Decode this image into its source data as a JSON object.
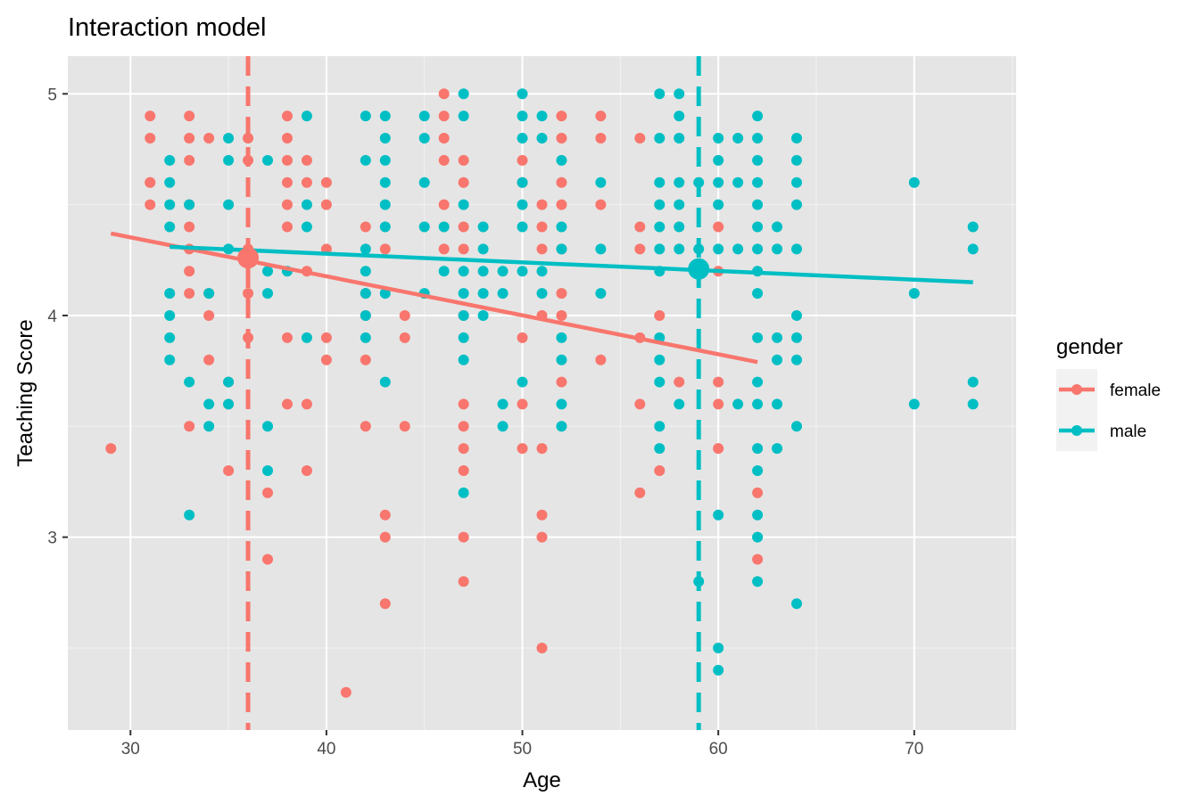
{
  "chart_data": {
    "type": "scatter",
    "title": "Interaction model",
    "xlabel": "Age",
    "ylabel": "Teaching Score",
    "xlim": [
      26.8,
      75.2
    ],
    "ylim": [
      2.13,
      5.17
    ],
    "x_ticks": [
      30,
      40,
      50,
      60,
      70
    ],
    "x_tick_labels": [
      "30",
      "40",
      "50",
      "60",
      "70"
    ],
    "y_ticks": [
      3,
      4,
      5
    ],
    "y_tick_labels": [
      "3",
      "4",
      "5"
    ],
    "grid": true,
    "legend": {
      "title": "gender",
      "position": "right",
      "entries": [
        {
          "label": "female",
          "color": "#F8766D"
        },
        {
          "label": "male",
          "color": "#00BFC4"
        }
      ]
    },
    "series": [
      {
        "name": "female",
        "color": "#F8766D",
        "points": [
          [
            29,
            3.4
          ],
          [
            31,
            4.9
          ],
          [
            31,
            4.8
          ],
          [
            31,
            4.6
          ],
          [
            31,
            4.6
          ],
          [
            31,
            4.5
          ],
          [
            33,
            4.9
          ],
          [
            33,
            4.8
          ],
          [
            33,
            4.7
          ],
          [
            33,
            4.5
          ],
          [
            33,
            4.4
          ],
          [
            33,
            4.3
          ],
          [
            33,
            4.2
          ],
          [
            33,
            4.1
          ],
          [
            33,
            3.5
          ],
          [
            34,
            4.8
          ],
          [
            34,
            4.1
          ],
          [
            34,
            4.0
          ],
          [
            34,
            3.8
          ],
          [
            35,
            3.7
          ],
          [
            35,
            3.6
          ],
          [
            35,
            3.3
          ],
          [
            36,
            4.8
          ],
          [
            36,
            4.7
          ],
          [
            36,
            4.3
          ],
          [
            36,
            4.1
          ],
          [
            36,
            3.9
          ],
          [
            37,
            3.2
          ],
          [
            37,
            2.9
          ],
          [
            38,
            4.9
          ],
          [
            38,
            4.8
          ],
          [
            38,
            4.7
          ],
          [
            38,
            4.6
          ],
          [
            38,
            4.5
          ],
          [
            38,
            4.4
          ],
          [
            38,
            3.9
          ],
          [
            38,
            3.6
          ],
          [
            39,
            4.7
          ],
          [
            39,
            4.6
          ],
          [
            39,
            4.2
          ],
          [
            39,
            3.6
          ],
          [
            39,
            3.3
          ],
          [
            40,
            4.6
          ],
          [
            40,
            4.5
          ],
          [
            40,
            4.3
          ],
          [
            40,
            3.9
          ],
          [
            40,
            3.8
          ],
          [
            41,
            2.3
          ],
          [
            42,
            4.4
          ],
          [
            42,
            4.1
          ],
          [
            42,
            4.0
          ],
          [
            42,
            3.8
          ],
          [
            42,
            3.5
          ],
          [
            43,
            4.3
          ],
          [
            43,
            3.1
          ],
          [
            43,
            3.0
          ],
          [
            43,
            2.7
          ],
          [
            44,
            4.0
          ],
          [
            44,
            3.9
          ],
          [
            44,
            3.5
          ],
          [
            46,
            5.0
          ],
          [
            46,
            4.9
          ],
          [
            46,
            4.8
          ],
          [
            46,
            4.7
          ],
          [
            46,
            4.5
          ],
          [
            46,
            4.3
          ],
          [
            47,
            4.7
          ],
          [
            47,
            4.6
          ],
          [
            47,
            4.4
          ],
          [
            47,
            4.3
          ],
          [
            47,
            4.0
          ],
          [
            47,
            3.6
          ],
          [
            47,
            3.5
          ],
          [
            47,
            3.4
          ],
          [
            47,
            3.3
          ],
          [
            47,
            3.0
          ],
          [
            47,
            2.8
          ],
          [
            50,
            4.7
          ],
          [
            50,
            4.6
          ],
          [
            50,
            3.9
          ],
          [
            50,
            3.6
          ],
          [
            50,
            3.4
          ],
          [
            51,
            4.5
          ],
          [
            51,
            4.4
          ],
          [
            51,
            4.3
          ],
          [
            51,
            4.0
          ],
          [
            51,
            3.4
          ],
          [
            51,
            3.1
          ],
          [
            51,
            3.0
          ],
          [
            51,
            2.5
          ],
          [
            52,
            4.9
          ],
          [
            52,
            4.8
          ],
          [
            52,
            4.6
          ],
          [
            52,
            4.5
          ],
          [
            52,
            4.3
          ],
          [
            52,
            4.1
          ],
          [
            52,
            4.0
          ],
          [
            52,
            3.7
          ],
          [
            54,
            4.9
          ],
          [
            54,
            4.8
          ],
          [
            54,
            4.5
          ],
          [
            54,
            3.8
          ],
          [
            56,
            4.8
          ],
          [
            56,
            4.4
          ],
          [
            56,
            4.3
          ],
          [
            56,
            3.9
          ],
          [
            56,
            3.6
          ],
          [
            56,
            3.2
          ],
          [
            57,
            4.0
          ],
          [
            57,
            3.3
          ],
          [
            58,
            3.7
          ],
          [
            60,
            4.4
          ],
          [
            60,
            4.2
          ],
          [
            60,
            3.7
          ],
          [
            60,
            3.6
          ],
          [
            60,
            3.4
          ],
          [
            62,
            3.2
          ],
          [
            62,
            2.9
          ]
        ],
        "fit_line": {
          "x": [
            29,
            62
          ],
          "y": [
            4.37,
            3.79
          ]
        },
        "mean_point": {
          "x": 36,
          "y": 4.26
        },
        "mean_age": 36
      },
      {
        "name": "male",
        "color": "#00BFC4",
        "points": [
          [
            32,
            4.7
          ],
          [
            32,
            4.6
          ],
          [
            32,
            4.5
          ],
          [
            32,
            4.4
          ],
          [
            32,
            4.1
          ],
          [
            32,
            4.0
          ],
          [
            32,
            3.9
          ],
          [
            32,
            3.8
          ],
          [
            33,
            4.5
          ],
          [
            33,
            3.7
          ],
          [
            33,
            3.1
          ],
          [
            34,
            4.1
          ],
          [
            34,
            3.6
          ],
          [
            34,
            3.5
          ],
          [
            35,
            4.8
          ],
          [
            35,
            4.7
          ],
          [
            35,
            4.5
          ],
          [
            35,
            4.3
          ],
          [
            35,
            3.7
          ],
          [
            35,
            3.6
          ],
          [
            37,
            4.7
          ],
          [
            37,
            4.2
          ],
          [
            37,
            4.1
          ],
          [
            37,
            3.5
          ],
          [
            37,
            3.3
          ],
          [
            38,
            4.2
          ],
          [
            39,
            4.9
          ],
          [
            39,
            4.5
          ],
          [
            39,
            4.4
          ],
          [
            39,
            3.9
          ],
          [
            42,
            4.9
          ],
          [
            42,
            4.7
          ],
          [
            42,
            4.3
          ],
          [
            42,
            4.2
          ],
          [
            42,
            4.1
          ],
          [
            42,
            4.0
          ],
          [
            42,
            3.9
          ],
          [
            43,
            4.9
          ],
          [
            43,
            4.8
          ],
          [
            43,
            4.7
          ],
          [
            43,
            4.6
          ],
          [
            43,
            4.5
          ],
          [
            43,
            4.4
          ],
          [
            43,
            4.1
          ],
          [
            43,
            3.7
          ],
          [
            45,
            4.9
          ],
          [
            45,
            4.8
          ],
          [
            45,
            4.6
          ],
          [
            45,
            4.4
          ],
          [
            45,
            4.1
          ],
          [
            46,
            4.4
          ],
          [
            46,
            4.2
          ],
          [
            47,
            5.0
          ],
          [
            47,
            4.9
          ],
          [
            47,
            4.5
          ],
          [
            47,
            4.2
          ],
          [
            47,
            4.1
          ],
          [
            47,
            4.0
          ],
          [
            47,
            3.9
          ],
          [
            47,
            3.8
          ],
          [
            47,
            3.2
          ],
          [
            48,
            4.4
          ],
          [
            48,
            4.3
          ],
          [
            48,
            4.2
          ],
          [
            48,
            4.1
          ],
          [
            48,
            4.0
          ],
          [
            49,
            4.2
          ],
          [
            49,
            4.1
          ],
          [
            49,
            3.6
          ],
          [
            49,
            3.5
          ],
          [
            50,
            5.0
          ],
          [
            50,
            4.9
          ],
          [
            50,
            4.8
          ],
          [
            50,
            4.6
          ],
          [
            50,
            4.5
          ],
          [
            50,
            4.4
          ],
          [
            50,
            4.2
          ],
          [
            50,
            3.7
          ],
          [
            51,
            4.9
          ],
          [
            51,
            4.8
          ],
          [
            51,
            4.2
          ],
          [
            51,
            4.1
          ],
          [
            52,
            4.7
          ],
          [
            52,
            4.4
          ],
          [
            52,
            4.3
          ],
          [
            52,
            3.9
          ],
          [
            52,
            3.8
          ],
          [
            52,
            3.6
          ],
          [
            52,
            3.5
          ],
          [
            54,
            4.6
          ],
          [
            54,
            4.3
          ],
          [
            54,
            4.1
          ],
          [
            57,
            5.0
          ],
          [
            57,
            4.8
          ],
          [
            57,
            4.6
          ],
          [
            57,
            4.5
          ],
          [
            57,
            4.4
          ],
          [
            57,
            4.3
          ],
          [
            57,
            4.2
          ],
          [
            57,
            3.9
          ],
          [
            57,
            3.8
          ],
          [
            57,
            3.7
          ],
          [
            57,
            3.5
          ],
          [
            57,
            3.4
          ],
          [
            58,
            5.0
          ],
          [
            58,
            4.9
          ],
          [
            58,
            4.8
          ],
          [
            58,
            4.6
          ],
          [
            58,
            4.5
          ],
          [
            58,
            4.4
          ],
          [
            58,
            4.3
          ],
          [
            58,
            3.6
          ],
          [
            59,
            4.6
          ],
          [
            59,
            4.3
          ],
          [
            59,
            2.8
          ],
          [
            60,
            4.8
          ],
          [
            60,
            4.7
          ],
          [
            60,
            4.6
          ],
          [
            60,
            4.5
          ],
          [
            60,
            4.3
          ],
          [
            60,
            3.1
          ],
          [
            60,
            2.5
          ],
          [
            60,
            2.4
          ],
          [
            61,
            4.8
          ],
          [
            61,
            4.6
          ],
          [
            61,
            4.3
          ],
          [
            61,
            3.6
          ],
          [
            62,
            4.9
          ],
          [
            62,
            4.8
          ],
          [
            62,
            4.7
          ],
          [
            62,
            4.6
          ],
          [
            62,
            4.5
          ],
          [
            62,
            4.4
          ],
          [
            62,
            4.3
          ],
          [
            62,
            4.2
          ],
          [
            62,
            4.1
          ],
          [
            62,
            3.9
          ],
          [
            62,
            3.7
          ],
          [
            62,
            3.6
          ],
          [
            62,
            3.4
          ],
          [
            62,
            3.3
          ],
          [
            62,
            3.1
          ],
          [
            62,
            3.0
          ],
          [
            62,
            2.8
          ],
          [
            63,
            4.4
          ],
          [
            63,
            4.3
          ],
          [
            63,
            3.9
          ],
          [
            63,
            3.8
          ],
          [
            63,
            3.6
          ],
          [
            63,
            3.4
          ],
          [
            64,
            4.8
          ],
          [
            64,
            4.7
          ],
          [
            64,
            4.6
          ],
          [
            64,
            4.5
          ],
          [
            64,
            4.3
          ],
          [
            64,
            4.0
          ],
          [
            64,
            3.9
          ],
          [
            64,
            3.8
          ],
          [
            64,
            3.5
          ],
          [
            64,
            2.7
          ],
          [
            70,
            4.6
          ],
          [
            70,
            4.1
          ],
          [
            70,
            3.6
          ],
          [
            73,
            4.4
          ],
          [
            73,
            4.3
          ],
          [
            73,
            3.7
          ],
          [
            73,
            3.6
          ]
        ],
        "fit_line": {
          "x": [
            32,
            73
          ],
          "y": [
            4.31,
            4.15
          ]
        },
        "mean_point": {
          "x": 59,
          "y": 4.21
        },
        "mean_age": 59
      }
    ]
  }
}
